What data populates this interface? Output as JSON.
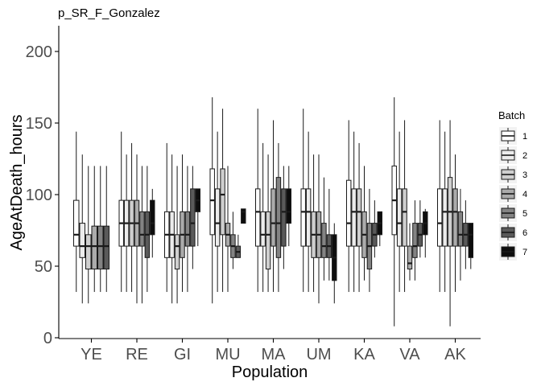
{
  "chart_data": {
    "type": "box",
    "title": "p_SR_F_Gonzalez",
    "xlabel": "Population",
    "ylabel": "AgeAtDeath_hours",
    "ylim": [
      0,
      217
    ],
    "yticks": [
      0,
      50,
      100,
      150,
      200
    ],
    "categories": [
      "YE",
      "RE",
      "GI",
      "MU",
      "MA",
      "UM",
      "KA",
      "VA",
      "AK"
    ],
    "legend": {
      "title": "Batch",
      "position": "right",
      "entries": [
        {
          "label": "1",
          "color": "#ffffff"
        },
        {
          "label": "2",
          "color": "#ececec"
        },
        {
          "label": "3",
          "color": "#cfcfcf"
        },
        {
          "label": "4",
          "color": "#ababab"
        },
        {
          "label": "5",
          "color": "#838383"
        },
        {
          "label": "6",
          "color": "#5a5a5a"
        },
        {
          "label": "7",
          "color": "#0d0d0d"
        }
      ]
    },
    "series": [
      {
        "name": "1",
        "boxes": [
          {
            "min": 32,
            "q1": 64,
            "median": 72,
            "q3": 96,
            "max": 144
          },
          {
            "min": 32,
            "q1": 64,
            "median": 80,
            "q3": 96,
            "max": 144
          },
          {
            "min": 32,
            "q1": 56,
            "median": 72,
            "q3": 88,
            "max": 136
          },
          {
            "min": 24,
            "q1": 72,
            "median": 96,
            "q3": 118,
            "max": 168
          },
          {
            "min": 32,
            "q1": 64,
            "median": 88,
            "q3": 104,
            "max": 160
          },
          {
            "min": 32,
            "q1": 64,
            "median": 88,
            "q3": 104,
            "max": 160
          },
          {
            "min": 32,
            "q1": 64,
            "median": 80,
            "q3": 110,
            "max": 152
          },
          {
            "min": 8,
            "q1": 72,
            "median": 96,
            "q3": 120,
            "max": 168
          },
          {
            "min": 32,
            "q1": 64,
            "median": 80,
            "q3": 104,
            "max": 152
          }
        ]
      },
      {
        "name": "2",
        "boxes": [
          {
            "min": 24,
            "q1": 56,
            "median": 64,
            "q3": 80,
            "max": 128
          },
          {
            "min": 32,
            "q1": 64,
            "median": 80,
            "q3": 96,
            "max": 128
          },
          {
            "min": 24,
            "q1": 56,
            "median": 72,
            "q3": 88,
            "max": 128
          },
          {
            "min": 32,
            "q1": 64,
            "median": 80,
            "q3": 104,
            "max": 144
          },
          {
            "min": 32,
            "q1": 64,
            "median": 72,
            "q3": 88,
            "max": 136
          },
          {
            "min": 32,
            "q1": 64,
            "median": 88,
            "q3": 104,
            "max": 144
          },
          {
            "min": 32,
            "q1": 64,
            "median": 88,
            "q3": 104,
            "max": 144
          },
          {
            "min": 32,
            "q1": 64,
            "median": 80,
            "q3": 104,
            "max": 144
          },
          {
            "min": 32,
            "q1": 64,
            "median": 88,
            "q3": 104,
            "max": 144
          }
        ]
      },
      {
        "name": "3",
        "boxes": [
          {
            "min": 24,
            "q1": 48,
            "median": 64,
            "q3": 72,
            "max": 120
          },
          {
            "min": 32,
            "q1": 64,
            "median": 80,
            "q3": 96,
            "max": 136
          },
          {
            "min": 24,
            "q1": 48,
            "median": 64,
            "q3": 72,
            "max": 120
          },
          {
            "min": 32,
            "q1": 72,
            "median": 100,
            "q3": 118,
            "max": 160
          },
          {
            "min": 32,
            "q1": 48,
            "median": 72,
            "q3": 88,
            "max": 128
          },
          {
            "min": 32,
            "q1": 56,
            "median": 72,
            "q3": 88,
            "max": 128
          },
          {
            "min": 32,
            "q1": 64,
            "median": 88,
            "q3": 104,
            "max": 136
          },
          {
            "min": 32,
            "q1": 64,
            "median": 88,
            "q3": 104,
            "max": 152
          },
          {
            "min": 8,
            "q1": 64,
            "median": 88,
            "q3": 112,
            "max": 152
          }
        ]
      },
      {
        "name": "4",
        "boxes": [
          {
            "min": 32,
            "q1": 48,
            "median": 64,
            "q3": 78,
            "max": 120
          },
          {
            "min": 24,
            "q1": 64,
            "median": 80,
            "q3": 96,
            "max": 128
          },
          {
            "min": 32,
            "q1": 56,
            "median": 72,
            "q3": 88,
            "max": 128
          },
          {
            "min": 32,
            "q1": 64,
            "median": 72,
            "q3": 80,
            "max": 120
          },
          {
            "min": 32,
            "q1": 64,
            "median": 80,
            "q3": 104,
            "max": 152
          },
          {
            "min": 24,
            "q1": 56,
            "median": 72,
            "q3": 88,
            "max": 128
          },
          {
            "min": 40,
            "q1": 56,
            "median": 72,
            "q3": 88,
            "max": 120
          },
          {
            "min": 40,
            "q1": 48,
            "median": 52,
            "q3": 64,
            "max": 80
          },
          {
            "min": 32,
            "q1": 64,
            "median": 88,
            "q3": 104,
            "max": 128
          }
        ]
      },
      {
        "name": "5",
        "boxes": [
          {
            "min": 32,
            "q1": 48,
            "median": 64,
            "q3": 78,
            "max": 120
          },
          {
            "min": 24,
            "q1": 64,
            "median": 72,
            "q3": 88,
            "max": 120
          },
          {
            "min": 32,
            "q1": 64,
            "median": 72,
            "q3": 88,
            "max": 120
          },
          {
            "min": 48,
            "q1": 56,
            "median": 64,
            "q3": 72,
            "max": 88
          },
          {
            "min": 32,
            "q1": 56,
            "median": 80,
            "q3": 112,
            "max": 136
          },
          {
            "min": 40,
            "q1": 56,
            "median": 64,
            "q3": 80,
            "max": 112
          },
          {
            "min": 32,
            "q1": 48,
            "median": 64,
            "q3": 80,
            "max": 104
          },
          {
            "min": 40,
            "q1": 56,
            "median": 64,
            "q3": 80,
            "max": 96
          },
          {
            "min": 40,
            "q1": 64,
            "median": 72,
            "q3": 88,
            "max": 104
          }
        ]
      },
      {
        "name": "6",
        "boxes": [
          {
            "min": 32,
            "q1": 48,
            "median": 64,
            "q3": 78,
            "max": 120
          },
          {
            "min": 32,
            "q1": 56,
            "median": 72,
            "q3": 88,
            "max": 120
          },
          {
            "min": 48,
            "q1": 64,
            "median": 80,
            "q3": 104,
            "max": 120
          },
          {
            "min": 56,
            "q1": 56,
            "median": 60,
            "q3": 64,
            "max": 72
          },
          {
            "min": 48,
            "q1": 64,
            "median": 88,
            "q3": 104,
            "max": 120
          },
          {
            "min": 40,
            "q1": 56,
            "median": 64,
            "q3": 72,
            "max": 104
          },
          {
            "min": 56,
            "q1": 64,
            "median": 72,
            "q3": 80,
            "max": 96
          },
          {
            "min": 56,
            "q1": 64,
            "median": 72,
            "q3": 80,
            "max": 96
          },
          {
            "min": 48,
            "q1": 64,
            "median": 72,
            "q3": 80,
            "max": 96
          }
        ]
      },
      {
        "name": "7",
        "boxes": [
          null,
          {
            "min": 56,
            "q1": 72,
            "median": 80,
            "q3": 96,
            "max": 104
          },
          {
            "min": 64,
            "q1": 88,
            "median": 96,
            "q3": 104,
            "max": 104
          },
          {
            "min": 80,
            "q1": 80,
            "median": 88,
            "q3": 90,
            "max": 90
          },
          {
            "min": 64,
            "q1": 80,
            "median": 88,
            "q3": 104,
            "max": 120
          },
          {
            "min": 24,
            "q1": 40,
            "median": 56,
            "q3": 72,
            "max": 80
          },
          {
            "min": 64,
            "q1": 72,
            "median": 80,
            "q3": 88,
            "max": 88
          },
          {
            "min": 56,
            "q1": 72,
            "median": 80,
            "q3": 88,
            "max": 90
          },
          {
            "min": 48,
            "q1": 56,
            "median": 72,
            "q3": 80,
            "max": 80
          }
        ]
      }
    ]
  }
}
